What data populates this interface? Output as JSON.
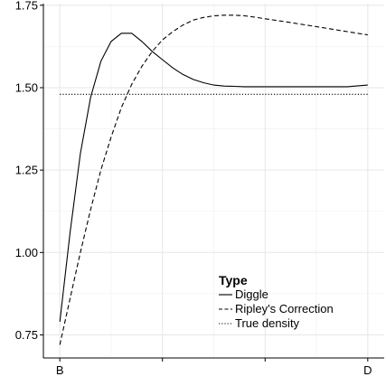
{
  "chart_data": {
    "type": "line",
    "title": "",
    "xlabel": "",
    "ylabel": "",
    "x_domain": [
      0,
      3
    ],
    "xlim": [
      -0.16,
      3.16
    ],
    "ylim": [
      0.68,
      1.755
    ],
    "x_ticks": [
      {
        "value": 0,
        "label": "B"
      },
      {
        "value": 1,
        "label": ""
      },
      {
        "value": 2,
        "label": ""
      },
      {
        "value": 3,
        "label": "D"
      }
    ],
    "y_ticks": [
      {
        "value": 0.75,
        "label": "0.75"
      },
      {
        "value": 1.0,
        "label": "1.00"
      },
      {
        "value": 1.25,
        "label": "1.25"
      },
      {
        "value": 1.5,
        "label": "1.50"
      },
      {
        "value": 1.75,
        "label": "1.75"
      }
    ],
    "grid": true,
    "legend": {
      "title": "Type",
      "position": "bottom-right",
      "entries": [
        "Diggle",
        "Ripley's Correction",
        "True density"
      ]
    },
    "series": [
      {
        "name": "Diggle",
        "line_style": "solid",
        "x": [
          0.0,
          0.1,
          0.2,
          0.3,
          0.4,
          0.5,
          0.6,
          0.7,
          0.8,
          0.9,
          1.0,
          1.1,
          1.2,
          1.3,
          1.4,
          1.5,
          1.6,
          1.7,
          1.8,
          1.9,
          2.0,
          2.2,
          2.4,
          2.6,
          2.8,
          3.0
        ],
        "y": [
          0.79,
          1.06,
          1.3,
          1.47,
          1.58,
          1.64,
          1.665,
          1.665,
          1.64,
          1.61,
          1.585,
          1.56,
          1.54,
          1.525,
          1.515,
          1.508,
          1.505,
          1.504,
          1.503,
          1.503,
          1.503,
          1.503,
          1.503,
          1.503,
          1.503,
          1.508
        ]
      },
      {
        "name": "Ripley's Correction",
        "line_style": "dashed",
        "x": [
          0.0,
          0.1,
          0.2,
          0.3,
          0.4,
          0.5,
          0.6,
          0.7,
          0.8,
          0.9,
          1.0,
          1.1,
          1.2,
          1.3,
          1.4,
          1.5,
          1.6,
          1.7,
          1.8,
          1.9,
          2.0,
          2.2,
          2.4,
          2.6,
          2.8,
          3.0
        ],
        "y": [
          0.72,
          0.86,
          1.0,
          1.13,
          1.25,
          1.35,
          1.44,
          1.51,
          1.565,
          1.61,
          1.645,
          1.67,
          1.69,
          1.705,
          1.713,
          1.718,
          1.72,
          1.72,
          1.718,
          1.714,
          1.709,
          1.7,
          1.69,
          1.68,
          1.67,
          1.66
        ]
      },
      {
        "name": "True density",
        "line_style": "dotted",
        "x": [
          0.0,
          3.0
        ],
        "y": [
          1.48,
          1.48
        ]
      }
    ]
  }
}
